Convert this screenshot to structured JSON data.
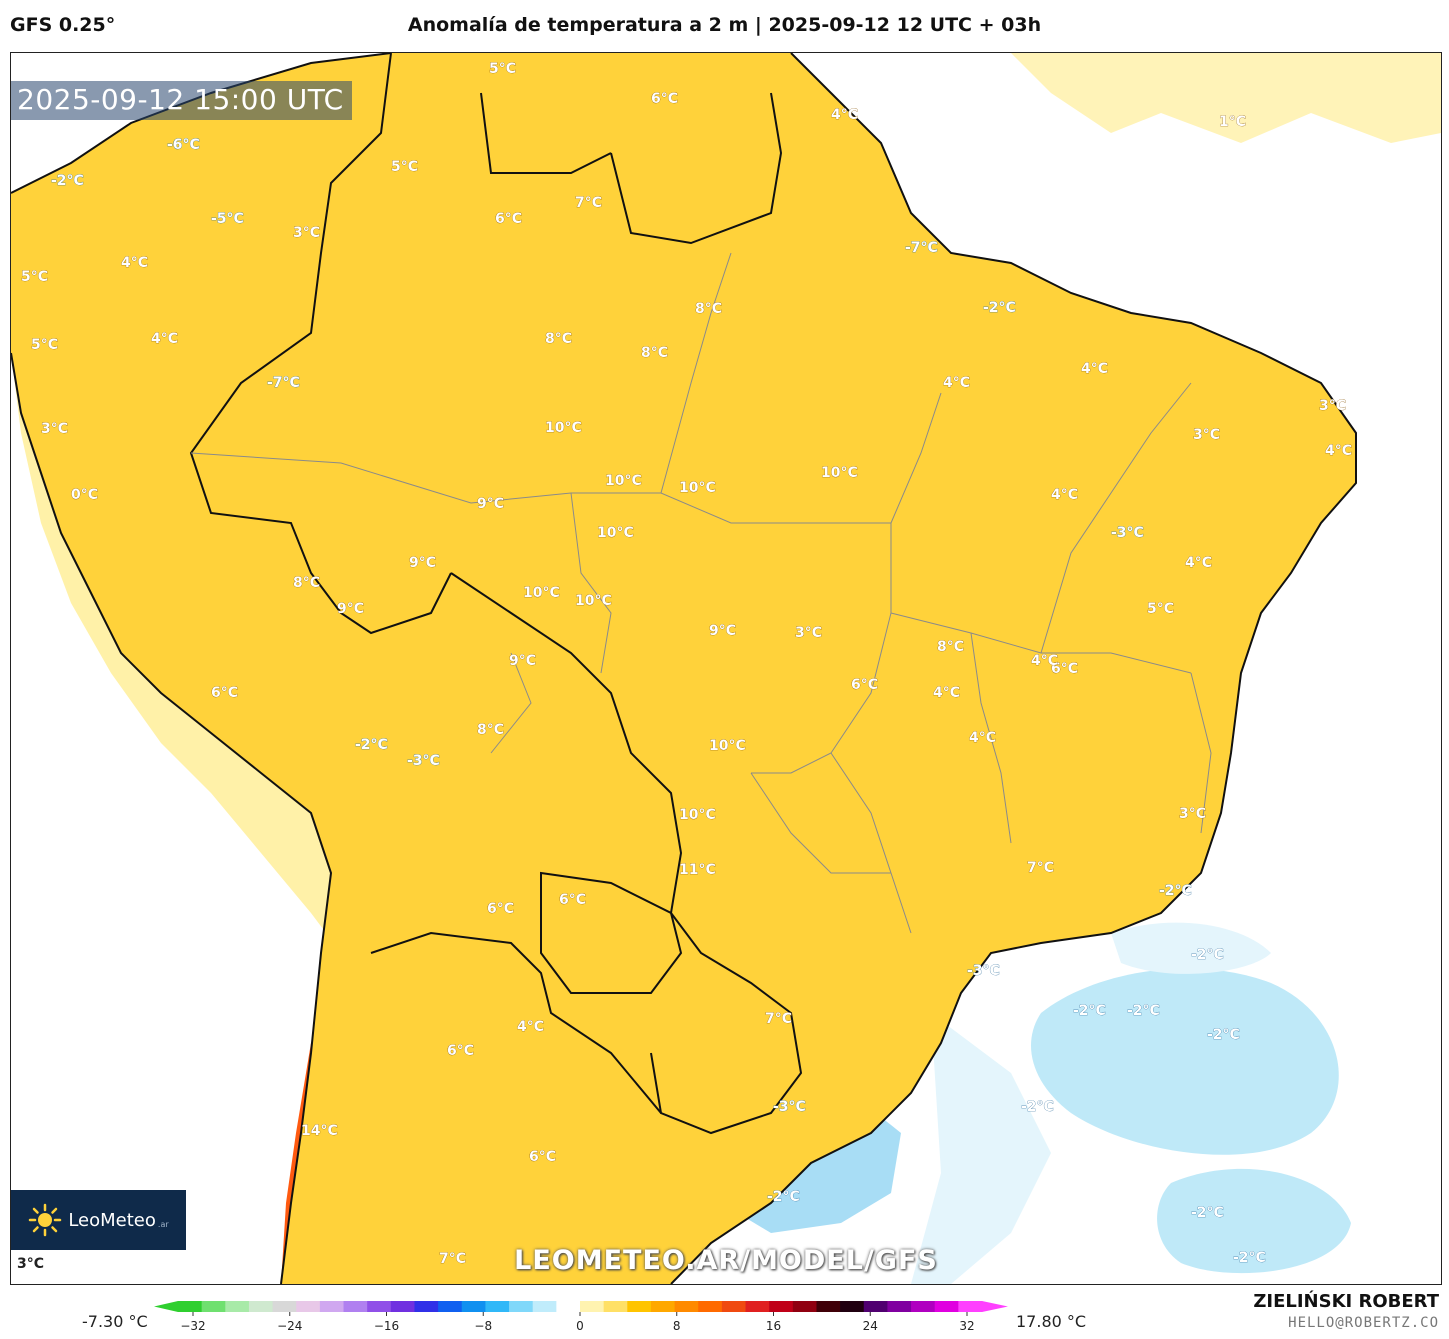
{
  "header": {
    "model": "GFS 0.25°",
    "title": "Anomalía de temperatura a 2 m | 2025-09-12 12 UTC + 03h"
  },
  "map": {
    "timestamp": "2025-09-12 15:00 UTC",
    "watermark": "LEOMETEO.AR/MODEL/GFS",
    "logo_text": "LeoMeteo",
    "logo_suffix": ".ar",
    "corner_label": "3°C",
    "contour_labels": [
      "5°C",
      "6°C",
      "4°C",
      "-6°C",
      "5°C",
      "-2°C",
      "-5°C",
      "3°C",
      "4°C",
      "5°C",
      "6°C",
      "7°C",
      "-7°C",
      "1°C",
      "5°C",
      "4°C",
      "-7°C",
      "8°C",
      "8°C",
      "8°C",
      "-2°C",
      "4°C",
      "3°C",
      "4°C",
      "10°C",
      "3°C",
      "4°C",
      "3°C",
      "10°C",
      "10°C",
      "10°C",
      "0°C",
      "9°C",
      "10°C",
      "4°C",
      "-3°C",
      "9°C",
      "8°C",
      "9°C",
      "10°C",
      "10°C",
      "4°C",
      "5°C",
      "9°C",
      "9°C",
      "8°C",
      "6°C",
      "4°C",
      "6°C",
      "3°C",
      "8°C",
      "10°C",
      "4°C",
      "4°C",
      "-2°C",
      "-3°C",
      "10°C",
      "6°C",
      "3°C",
      "11°C",
      "7°C",
      "-2°C",
      "6°C",
      "6°C",
      "-3°C",
      "-2°C",
      "4°C",
      "-2°C",
      "-2°C",
      "-2°C",
      "6°C",
      "7°C",
      "-2°C",
      "14°C",
      "-3°C",
      "6°C",
      "-2°C",
      "-2°C",
      "7°C",
      "-2°C"
    ]
  },
  "legend": {
    "min_label": "-7.30 °C",
    "max_label": "17.80 °C",
    "ticks": [
      "−32",
      "−24",
      "−16",
      "−8",
      "0",
      "8",
      "16",
      "24",
      "32"
    ],
    "colors": [
      "#2fcf2f",
      "#6fe06f",
      "#a8eaa8",
      "#cfe9cf",
      "#d8d8d8",
      "#e8c8e8",
      "#d0a8f0",
      "#b080f0",
      "#9050e8",
      "#7030e0",
      "#3030e8",
      "#1060f0",
      "#1090f0",
      "#30b8f8",
      "#80d8fa",
      "#c0ecfb",
      "#ffffff",
      "#fff3b0",
      "#ffe066",
      "#ffc400",
      "#ffa800",
      "#ff8a00",
      "#ff6a00",
      "#f04a10",
      "#e02020",
      "#c00018",
      "#900010",
      "#400008",
      "#200010",
      "#500070",
      "#8000a0",
      "#b000c0",
      "#e000e0",
      "#ff40ff"
    ]
  },
  "footer": {
    "author": "ZIELIŃSKI ROBERT",
    "email": "HELLO@ROBERTZ.CO"
  }
}
